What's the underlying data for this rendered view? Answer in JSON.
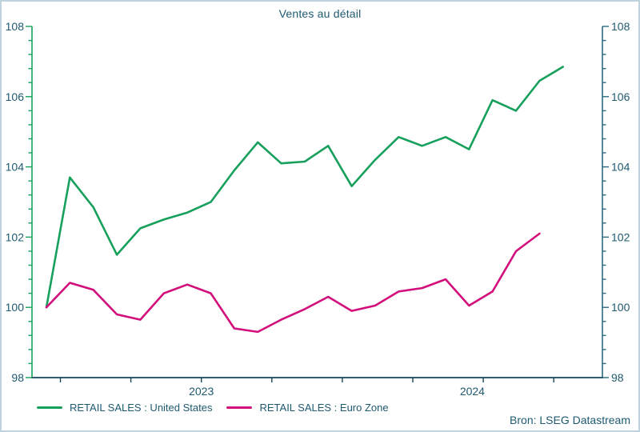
{
  "title": "Ventes au détail",
  "source": "Bron: LSEG Datastream",
  "colors": {
    "text": "#1e5a70",
    "left_axis": "#17a05c",
    "right_axis": "#2b6b80",
    "bottom_axis": "#16455e",
    "frame": "#bfd3de"
  },
  "chart_data": {
    "type": "line",
    "title": "Ventes au détail",
    "xlabel": "",
    "ylabel": "",
    "ylim": [
      98,
      108
    ],
    "y_major_ticks": [
      108,
      106,
      104,
      102,
      100,
      98
    ],
    "y_minor_tick_step": 0.4,
    "y_axis_sides": [
      "left",
      "right"
    ],
    "x_year_labels": [
      "2023",
      "2024"
    ],
    "x_tick_interval": "quarter",
    "grid": false,
    "legend_position": "bottom",
    "months": [
      "Dec 2022",
      "Jan 2023",
      "Feb 2023",
      "Mar 2023",
      "Apr 2023",
      "May 2023",
      "Jun 2023",
      "Jul 2023",
      "Aug 2023",
      "Sep 2023",
      "Oct 2023",
      "Nov 2023",
      "Dec 2023",
      "Jan 2024",
      "Feb 2024",
      "Mar 2024",
      "Apr 2024",
      "May 2024",
      "Jun 2024",
      "Jul 2024",
      "Aug 2024",
      "Sep 2024",
      "Oct 2024"
    ],
    "series": [
      {
        "name": "RETAIL SALES : United States",
        "color": "#17a05c",
        "values": [
          100.0,
          103.7,
          102.85,
          101.5,
          102.25,
          102.5,
          102.7,
          103.0,
          103.9,
          104.7,
          104.1,
          104.15,
          104.6,
          103.45,
          104.2,
          104.85,
          104.6,
          104.85,
          104.5,
          105.9,
          105.6,
          106.45,
          106.85
        ]
      },
      {
        "name": "RETAIL SALES : Euro Zone",
        "color": "#d20f7b",
        "values": [
          100.0,
          100.7,
          100.5,
          99.8,
          99.65,
          100.4,
          100.65,
          100.4,
          99.4,
          99.3,
          99.65,
          99.95,
          100.3,
          99.9,
          100.05,
          100.45,
          100.55,
          100.8,
          100.05,
          100.45,
          101.6,
          102.1
        ]
      }
    ]
  }
}
